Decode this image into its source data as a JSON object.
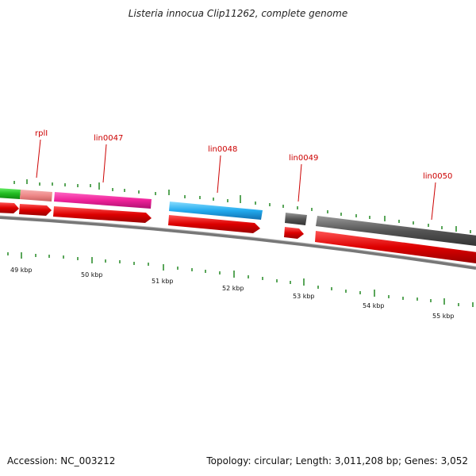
{
  "title": "Listeria innocua Clip11262, complete genome",
  "footer": {
    "accession": "Accession: NC_003212",
    "stats": "Topology: circular; Length: 3,011,208 bp; Genes: 3,052"
  },
  "genes": [
    {
      "name": "",
      "color": "#22bb22"
    },
    {
      "name": "rplI",
      "color": "#ee8888"
    },
    {
      "name": "lin0047",
      "color": "#ee2299"
    },
    {
      "name": "lin0048",
      "color": "#22aaee"
    },
    {
      "name": "lin0049",
      "color": "#555555"
    },
    {
      "name": "lin0050",
      "color": "#555555"
    }
  ],
  "kbp_ticks": [
    "49 kbp",
    "50 kbp",
    "51 kbp",
    "52 kbp",
    "53 kbp",
    "54 kbp",
    "55 kbp"
  ],
  "colors": {
    "orf_red": "#dd0000",
    "backbone": "#777777",
    "gc_tick": "#228822",
    "label_red": "#cc0000"
  }
}
